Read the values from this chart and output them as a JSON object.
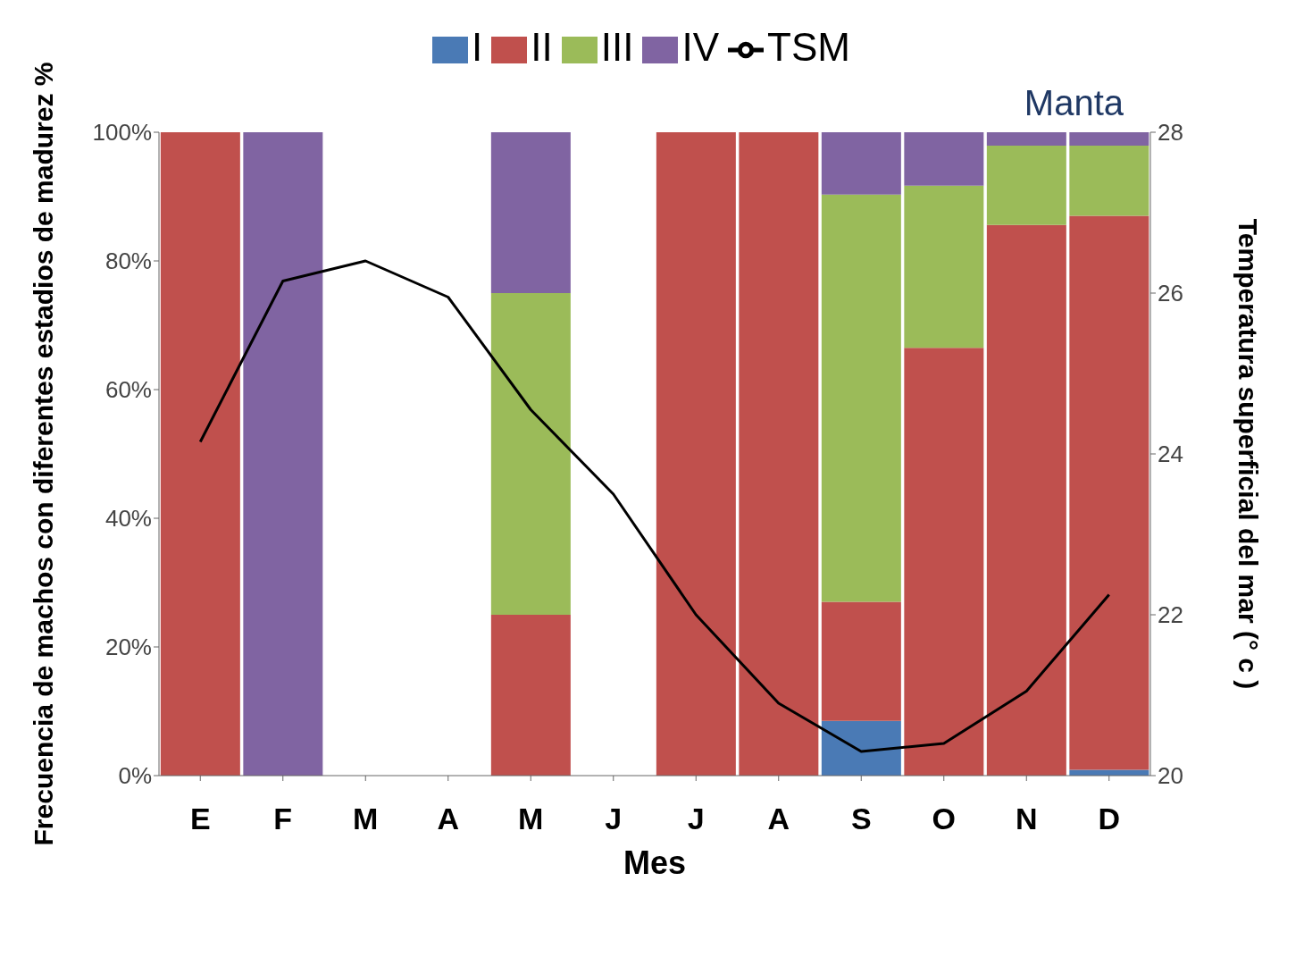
{
  "chart_data": {
    "type": "bar",
    "stacked": true,
    "categories": [
      "E",
      "F",
      "M",
      "A",
      "M",
      "J",
      "J",
      "A",
      "S",
      "O",
      "N",
      "D"
    ],
    "xlabel": "Mes",
    "ylabel": "Frecuencia de machos con diferentes estadios de madurez %",
    "y2label": "Temperatura superficial del mar (° c )",
    "series": [
      {
        "name": "I",
        "color": "#4a7ab5",
        "values": [
          0,
          0,
          null,
          null,
          0,
          null,
          0,
          0,
          8.5,
          0,
          0,
          0.9
        ]
      },
      {
        "name": "II",
        "color": "#c0504d",
        "values": [
          100,
          0,
          null,
          null,
          25,
          null,
          100,
          100,
          18.5,
          66.5,
          85.6,
          86.1
        ]
      },
      {
        "name": "III",
        "color": "#9bbb59",
        "values": [
          0,
          0,
          null,
          null,
          50,
          null,
          0,
          0,
          63.3,
          25.2,
          12.3,
          10.9
        ]
      },
      {
        "name": "IV",
        "color": "#8064a2",
        "values": [
          0,
          100,
          null,
          null,
          25,
          null,
          0,
          0,
          9.7,
          8.3,
          2.1,
          2.1
        ]
      },
      {
        "name": "TSM",
        "type": "line",
        "axis": "y2",
        "color": "#000000",
        "values": [
          24.15,
          26.15,
          26.4,
          25.95,
          24.55,
          23.5,
          22.0,
          20.9,
          20.3,
          20.4,
          21.05,
          22.25
        ]
      }
    ],
    "ylim": [
      0,
      100
    ],
    "yticks": [
      {
        "value": 0,
        "label": "0%"
      },
      {
        "value": 20,
        "label": "20%"
      },
      {
        "value": 40,
        "label": "40%"
      },
      {
        "value": 60,
        "label": "60%"
      },
      {
        "value": 80,
        "label": "80%"
      },
      {
        "value": 100,
        "label": "100%"
      }
    ],
    "y2lim": [
      20,
      28
    ],
    "y2ticks": [
      20,
      22,
      24,
      26,
      28
    ],
    "annotations": [
      "Manta"
    ],
    "legend": "top",
    "marker": "none",
    "line_style": "solid",
    "grid": false
  }
}
